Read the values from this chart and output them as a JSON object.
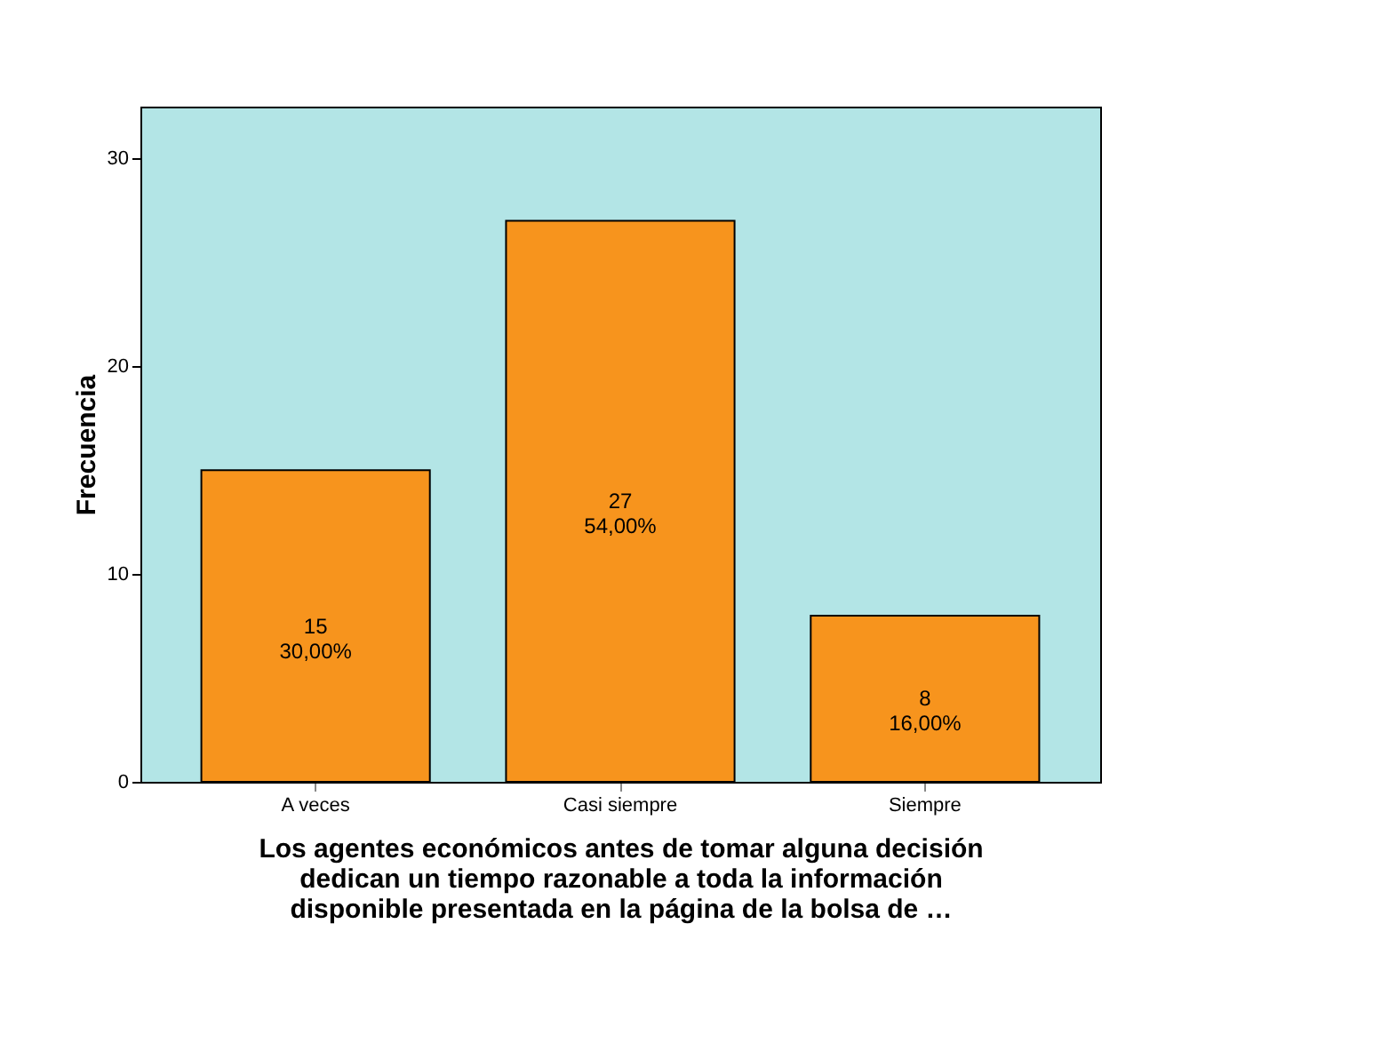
{
  "chart_data": {
    "type": "bar",
    "categories": [
      "A veces",
      "Casi siempre",
      "Siempre"
    ],
    "values": [
      15,
      27,
      8
    ],
    "color": "#f7941d",
    "value_labels": [
      "15\n30,00%",
      "27\n54,00%",
      "8\n16,00%"
    ],
    "ylim": [
      0,
      32.5
    ],
    "yticks": [
      0,
      10,
      20,
      30
    ],
    "grid": false,
    "ylabel": "Frecuencia",
    "xlabel": "Los agentes económicos antes de tomar alguna decisión dedican un tiempo razonable a toda la información disponible presentada en la página de la bolsa de …"
  }
}
